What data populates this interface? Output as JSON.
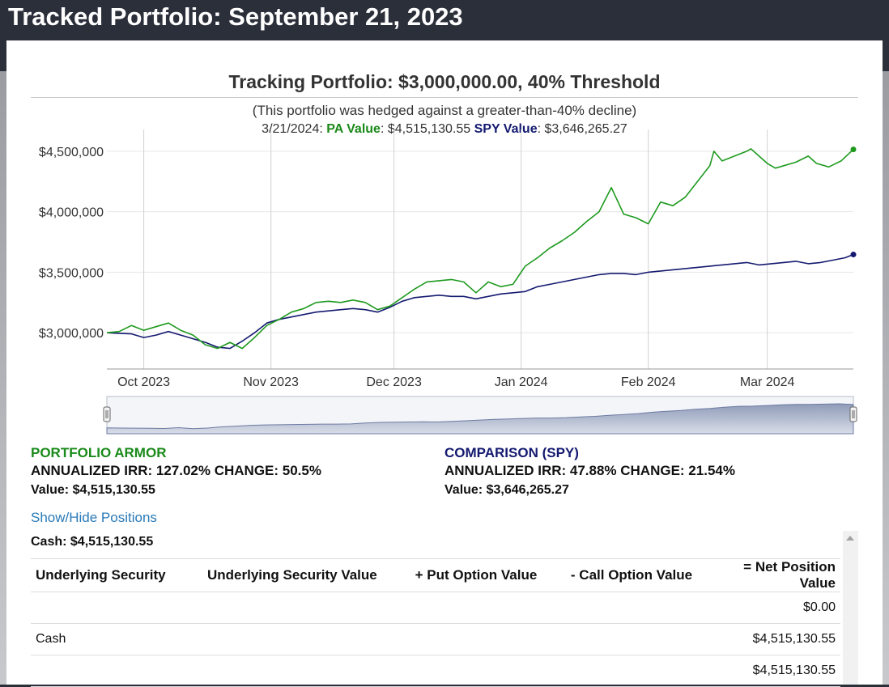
{
  "page": {
    "title": "Tracked Portfolio: September 21, 2023"
  },
  "chart": {
    "title": "Tracking Portfolio: $3,000,000.00, 40% Threshold",
    "subtitle": "(This portfolio was hedged against a greater-than-40% decline)",
    "hover": {
      "date": "3/21/2024:",
      "pa_label": "PA Value",
      "pa_value": ": $4,515,130.55",
      "spy_label": "SPY Value",
      "spy_value": ": $3,646,265.27"
    }
  },
  "chart_data": {
    "type": "line",
    "title": "Tracking Portfolio: $3,000,000.00, 40% Threshold",
    "xlabel": "",
    "ylabel": "",
    "x_ticks": [
      "Oct 2023",
      "Nov 2023",
      "Dec 2023",
      "Jan 2024",
      "Feb 2024",
      "Mar 2024"
    ],
    "y_ticks": [
      "$3,000,000",
      "$3,500,000",
      "$4,000,000",
      "$4,500,000"
    ],
    "y_tick_values": [
      3000000,
      3500000,
      4000000,
      4500000
    ],
    "ylim": [
      2700000,
      4680000
    ],
    "x_range_days": [
      0,
      182
    ],
    "x_tick_days": [
      9,
      40,
      70,
      101,
      132,
      161
    ],
    "grid": "vertical",
    "series": [
      {
        "name": "PA Value",
        "color": "#1f9a1f",
        "x": [
          0,
          3,
          6,
          9,
          12,
          15,
          18,
          21,
          24,
          27,
          30,
          33,
          36,
          39,
          42,
          45,
          48,
          51,
          54,
          57,
          60,
          63,
          66,
          69,
          72,
          75,
          78,
          81,
          84,
          87,
          90,
          93,
          96,
          99,
          102,
          105,
          108,
          111,
          114,
          117,
          120,
          123,
          126,
          129,
          132,
          135,
          138,
          141,
          144,
          147,
          148,
          150,
          153,
          156,
          157,
          159,
          161,
          163,
          165,
          168,
          171,
          173,
          176,
          179,
          182
        ],
        "values": [
          3000000,
          3010000,
          3060000,
          3020000,
          3050000,
          3080000,
          3020000,
          2980000,
          2900000,
          2870000,
          2920000,
          2870000,
          2960000,
          3060000,
          3110000,
          3170000,
          3200000,
          3250000,
          3260000,
          3250000,
          3270000,
          3250000,
          3190000,
          3220000,
          3290000,
          3360000,
          3420000,
          3430000,
          3440000,
          3420000,
          3330000,
          3420000,
          3380000,
          3400000,
          3550000,
          3620000,
          3700000,
          3760000,
          3830000,
          3920000,
          4000000,
          4200000,
          3980000,
          3950000,
          3900000,
          4080000,
          4050000,
          4120000,
          4250000,
          4380000,
          4500000,
          4420000,
          4460000,
          4500000,
          4520000,
          4460000,
          4400000,
          4360000,
          4380000,
          4410000,
          4460000,
          4400000,
          4370000,
          4420000,
          4515000
        ]
      },
      {
        "name": "SPY Value",
        "color": "#141a70",
        "x": [
          0,
          3,
          6,
          9,
          12,
          15,
          18,
          21,
          24,
          27,
          30,
          33,
          36,
          39,
          42,
          45,
          48,
          51,
          54,
          57,
          60,
          63,
          66,
          69,
          72,
          75,
          78,
          81,
          84,
          87,
          90,
          93,
          96,
          99,
          102,
          105,
          108,
          111,
          114,
          117,
          120,
          123,
          126,
          129,
          132,
          135,
          138,
          141,
          144,
          147,
          150,
          153,
          156,
          159,
          162,
          165,
          168,
          171,
          174,
          177,
          180,
          182
        ],
        "values": [
          3000000,
          2995000,
          2990000,
          2960000,
          2980000,
          3010000,
          2980000,
          2950000,
          2920000,
          2880000,
          2870000,
          2930000,
          3000000,
          3080000,
          3110000,
          3130000,
          3150000,
          3170000,
          3180000,
          3190000,
          3200000,
          3190000,
          3170000,
          3210000,
          3260000,
          3290000,
          3300000,
          3310000,
          3300000,
          3300000,
          3280000,
          3300000,
          3320000,
          3330000,
          3340000,
          3380000,
          3400000,
          3420000,
          3440000,
          3460000,
          3480000,
          3490000,
          3490000,
          3480000,
          3500000,
          3510000,
          3520000,
          3530000,
          3540000,
          3550000,
          3560000,
          3570000,
          3580000,
          3560000,
          3570000,
          3580000,
          3590000,
          3570000,
          3580000,
          3600000,
          3620000,
          3646265
        ]
      }
    ],
    "navigator_values": [
      3000000,
      2990000,
      2985000,
      2980000,
      2970000,
      3010000,
      2960000,
      2990000,
      3050000,
      3090000,
      3130000,
      3150000,
      3160000,
      3170000,
      3180000,
      3190000,
      3190000,
      3200000,
      3250000,
      3280000,
      3290000,
      3300000,
      3310000,
      3300000,
      3330000,
      3360000,
      3400000,
      3430000,
      3450000,
      3480000,
      3500000,
      3500000,
      3520000,
      3560000,
      3590000,
      3640000,
      3680000,
      3730000,
      3800000,
      3850000,
      3890000,
      3950000,
      3990000,
      4050000,
      4100000,
      4110000,
      4140000,
      4180000,
      4200000,
      4200000,
      4210000,
      4230000,
      4190000
    ]
  },
  "stats": {
    "pa": {
      "heading": "PORTFOLIO ARMOR",
      "irr_change": "ANNUALIZED IRR: 127.02% CHANGE: 50.5%",
      "value": "Value: $4,515,130.55"
    },
    "spy": {
      "heading": "COMPARISON (SPY)",
      "irr_change": "ANNUALIZED IRR: 47.88% CHANGE: 21.54%",
      "value": "Value: $3,646,265.27"
    }
  },
  "positions": {
    "toggle_label": "Show/Hide Positions",
    "cash_line": "Cash: $4,515,130.55",
    "headers": {
      "security": "Underlying Security",
      "security_value": "Underlying Security Value",
      "put": "+ Put Option Value",
      "call": "- Call Option Value",
      "net": "= Net Position Value"
    },
    "rows": [
      {
        "security": "",
        "net": "$0.00"
      },
      {
        "security": "Cash",
        "net": "$4,515,130.55"
      },
      {
        "security": "",
        "net": "$4,515,130.55"
      }
    ]
  }
}
